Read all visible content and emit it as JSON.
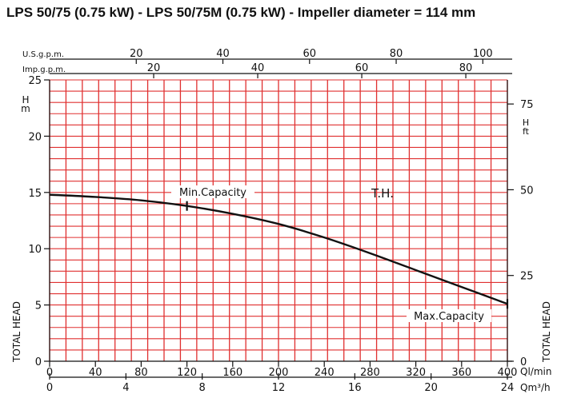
{
  "title": "LPS 50/75 (0.75 kW) - LPS 50/75M (0.75 kW) - Impeller diameter = 114 mm",
  "chart_data": {
    "type": "line",
    "grid": true,
    "colors": {
      "grid": "#e03030",
      "curve": "#111111",
      "axis": "#111111"
    },
    "x_primary": {
      "label": "Ql/min",
      "range": [
        0,
        400
      ],
      "ticks": [
        0,
        40,
        80,
        120,
        160,
        200,
        240,
        280,
        320,
        360,
        400
      ]
    },
    "x_secondary": {
      "label": "Qm³/h",
      "range": [
        0,
        24
      ],
      "ticks": [
        0,
        4,
        8,
        12,
        16,
        20,
        24
      ]
    },
    "x_top_us": {
      "label": "U.S.g.p.m.",
      "range": [
        0,
        105.67
      ],
      "ticks": [
        20,
        40,
        60,
        80,
        100
      ]
    },
    "x_top_imp": {
      "label": "Imp.g.p.m.",
      "range": [
        0,
        87.99
      ],
      "ticks": [
        20,
        40,
        60,
        80
      ]
    },
    "y_left": {
      "label_top": "H",
      "label_unit": "m",
      "label": "TOTAL HEAD",
      "range": [
        0,
        25
      ],
      "ticks": [
        0,
        5,
        10,
        15,
        20,
        25
      ]
    },
    "y_right": {
      "label_top": "H",
      "label_unit": "ft",
      "label": "TOTAL HEAD",
      "range": [
        0,
        82.02
      ],
      "ticks": [
        0,
        25,
        50,
        75
      ]
    },
    "series": [
      {
        "name": "T.H.",
        "x": [
          0,
          40,
          80,
          120,
          160,
          200,
          240,
          280,
          320,
          360,
          400
        ],
        "y": [
          14.8,
          14.6,
          14.3,
          13.8,
          13.1,
          12.2,
          11.0,
          9.6,
          8.1,
          6.6,
          5.1
        ]
      }
    ],
    "annotations": [
      {
        "text": "Min.Capacity",
        "x": 120,
        "y": 13.8
      },
      {
        "text": "Max.Capacity",
        "x": 400,
        "y": 5.1
      }
    ]
  }
}
